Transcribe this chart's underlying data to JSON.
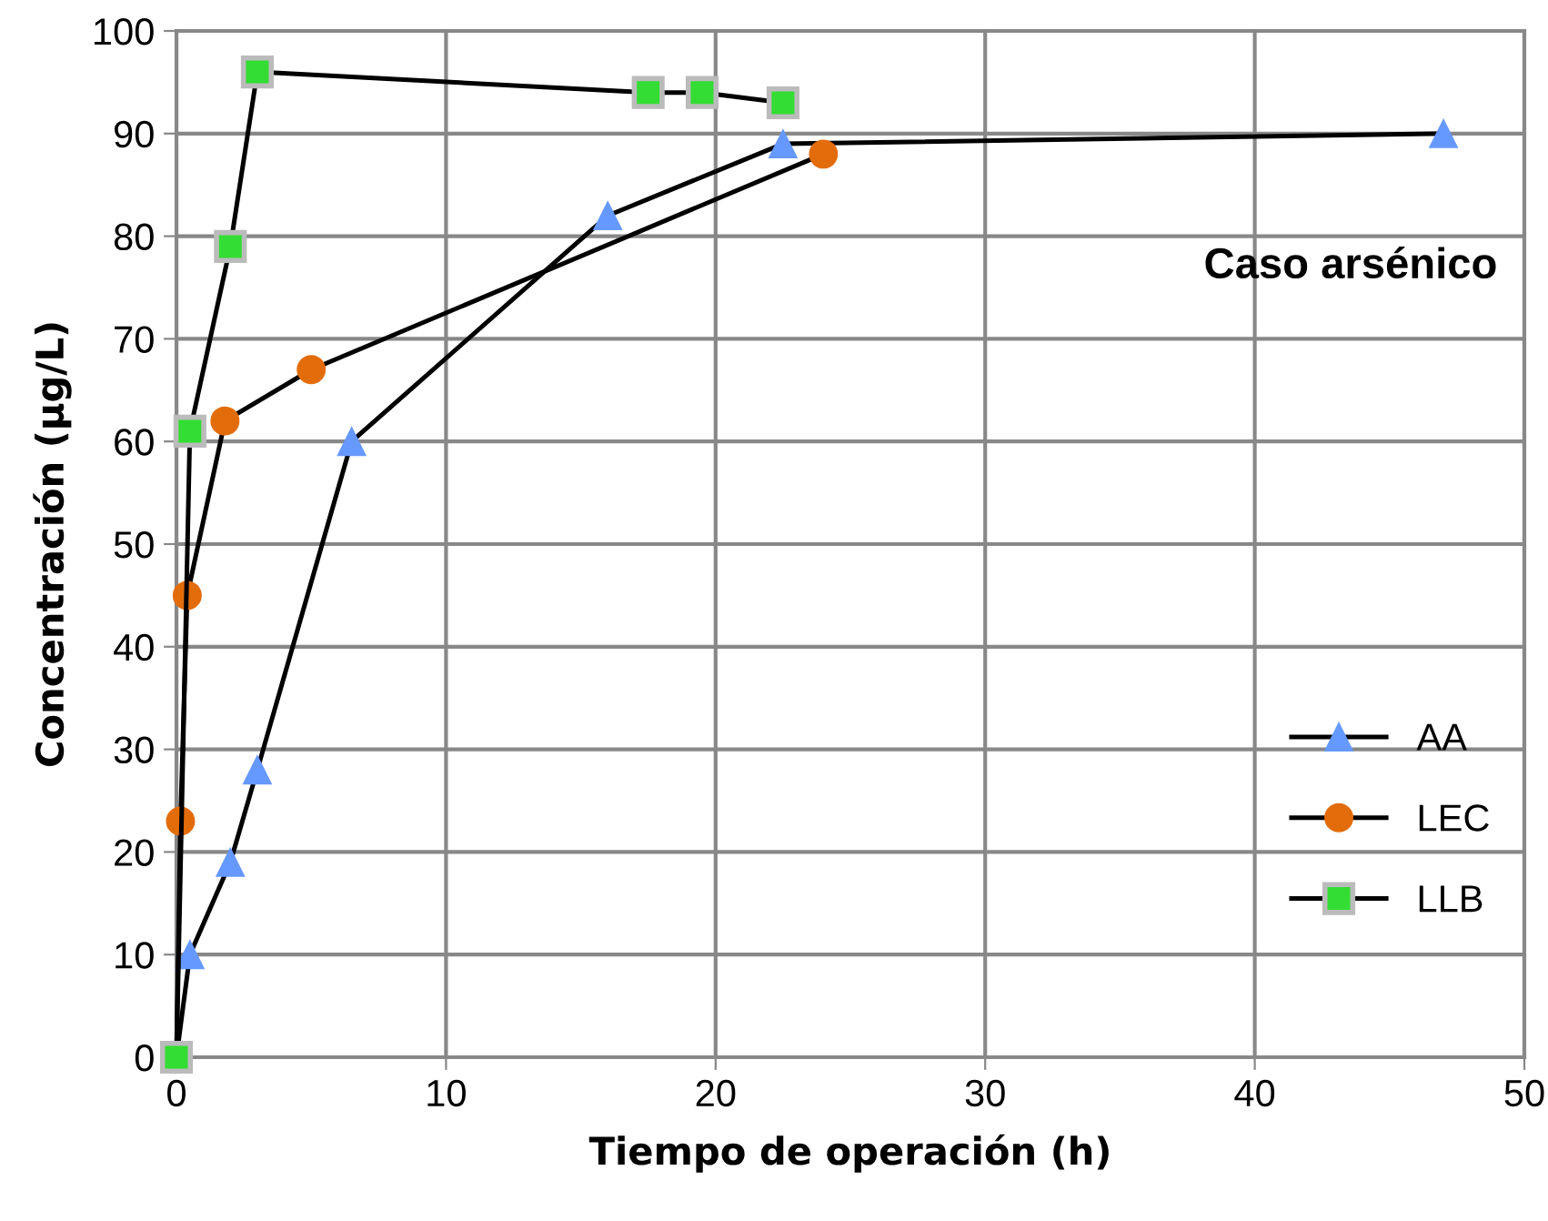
{
  "chart_data": {
    "type": "line",
    "xlabel": "Tiempo de operación (h)",
    "ylabel": "Concentración (µg/L)",
    "annotations": [
      "Caso arsénico"
    ],
    "xlim": [
      0,
      50
    ],
    "xticks": [
      0,
      10,
      20,
      30,
      40,
      50
    ],
    "ylim": [
      0,
      100
    ],
    "yticks": [
      0,
      10,
      20,
      30,
      40,
      50,
      60,
      70,
      80,
      90,
      100
    ],
    "grid": true,
    "legend": "right",
    "line_style": "solid",
    "series": [
      {
        "name": "AA",
        "color": "#6699ff",
        "marker": "triangle",
        "x": [
          0,
          0.5,
          2,
          3,
          6.5,
          16,
          22.5,
          47
        ],
        "values": [
          0,
          10,
          19,
          28,
          60,
          82,
          89,
          90
        ]
      },
      {
        "name": "LEC",
        "color": "#e36c0a",
        "marker": "circle",
        "x": [
          0,
          0.15,
          0.4,
          1.8,
          5,
          24
        ],
        "values": [
          0,
          23,
          45,
          62,
          67,
          88
        ]
      },
      {
        "name": "LLB",
        "color": "#33dd33",
        "marker": "square",
        "x": [
          0,
          0.5,
          2,
          3,
          17.5,
          19.5,
          22.5
        ],
        "values": [
          0,
          61,
          79,
          96,
          94,
          94,
          93
        ]
      }
    ]
  }
}
